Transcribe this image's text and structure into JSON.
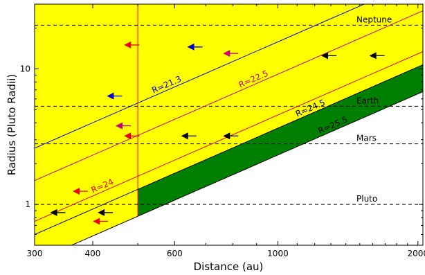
{
  "chart_data": {
    "type": "line",
    "title": "",
    "xlabel": "Distance (au)",
    "ylabel": "Radius (Pluto Radii)",
    "x_scale": "log",
    "y_scale": "log",
    "xlim": [
      300,
      2050
    ],
    "ylim": [
      0.5,
      30
    ],
    "x_ticks": [
      {
        "value": 300,
        "label": "300"
      },
      {
        "value": 400,
        "label": "400"
      },
      {
        "value": 600,
        "label": "600"
      },
      {
        "value": 1000,
        "label": "1000"
      },
      {
        "value": 2000,
        "label": "2000"
      }
    ],
    "y_ticks": [
      {
        "value": 1,
        "label": "1"
      },
      {
        "value": 10,
        "label": "10"
      }
    ],
    "colors": {
      "yellow_region": "#ffff00",
      "green_region": "#007f00",
      "blue": "#0000cc",
      "magenta": "#cc0077",
      "red": "#ee0000",
      "black": "#000000"
    },
    "limit_distance": 500,
    "reference_lines": [
      {
        "label": "Neptune",
        "y": 21
      },
      {
        "label": "Earth",
        "y": 5.3
      },
      {
        "label": "Mars",
        "y": 2.8
      },
      {
        "label": "Pluto",
        "y": 1
      }
    ],
    "magnitude_lines": [
      {
        "label": "R=21.3",
        "color": "#0000cc",
        "y_at_300": 2.6
      },
      {
        "label": "R=22.5",
        "color": "#cc0077",
        "y_at_300": 1.5
      },
      {
        "label": "R=24",
        "color": "#ee0000",
        "y_at_300": 0.75
      },
      {
        "label": "R=24.5",
        "color": "#000000",
        "y_at_300": 0.6
      },
      {
        "label": "R=25.5",
        "color": "#000000",
        "y_at_300": 0.38
      }
    ],
    "arrows": [
      {
        "color": "#ee0000",
        "x": 490,
        "y": 15
      },
      {
        "color": "#0000cc",
        "x": 670,
        "y": 14.5
      },
      {
        "color": "#cc0077",
        "x": 800,
        "y": 13
      },
      {
        "color": "#0000cc",
        "x": 450,
        "y": 6.3
      },
      {
        "color": "#cc0077",
        "x": 470,
        "y": 3.8
      },
      {
        "color": "#ee0000",
        "x": 490,
        "y": 3.2
      },
      {
        "color": "#000000",
        "x": 650,
        "y": 3.2
      },
      {
        "color": "#000000",
        "x": 800,
        "y": 3.2
      },
      {
        "color": "#000000",
        "x": 1300,
        "y": 12.5
      },
      {
        "color": "#000000",
        "x": 1650,
        "y": 12.5
      },
      {
        "color": "#ee0000",
        "x": 380,
        "y": 1.25
      },
      {
        "color": "#000000",
        "x": 340,
        "y": 0.87
      },
      {
        "color": "#000000",
        "x": 430,
        "y": 0.87
      },
      {
        "color": "#ee0000",
        "x": 420,
        "y": 0.75
      }
    ]
  }
}
